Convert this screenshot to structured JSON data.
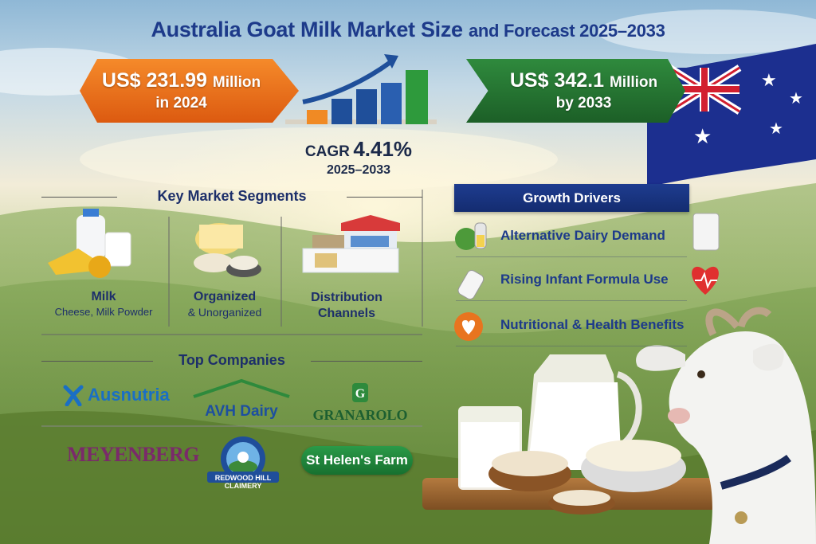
{
  "title": {
    "main": "Australia Goat Milk Market Size",
    "sub": "and Forecast 2025–2033"
  },
  "market_2024": {
    "value": "US$ 231.99",
    "unit": "Million",
    "period": "in 2024"
  },
  "market_2033": {
    "value": "US$ 342.1",
    "unit": "Million",
    "period": "by 2033"
  },
  "cagr": {
    "label": "CAGR",
    "value": "4.41%",
    "period": "2025–2033"
  },
  "segments": {
    "heading": "Key Market Segments",
    "items": [
      {
        "title": "Milk",
        "subtitle": "Cheese, Milk Powder"
      },
      {
        "title": "Organized",
        "subtitle": "& Unorganized"
      },
      {
        "title": "Distribution",
        "subtitle": "Channels"
      }
    ]
  },
  "drivers": {
    "heading": "Growth Drivers",
    "items": [
      "Alternative Dairy Demand",
      "Rising Infant Formula Use",
      "Nutritional & Health Benefits"
    ]
  },
  "companies": {
    "heading": "Top Companies",
    "items": [
      "Ausnutria",
      "AVH Dairy",
      "GRANAROLO",
      "MEYENBERG",
      "REDWOOD HILL CLAIMERY",
      "St Helen's Farm"
    ]
  },
  "colors": {
    "title_blue": "#1d3a8a",
    "banner_orange": "#e8701a",
    "banner_green": "#247a34",
    "drivers_blue": "#1a357f"
  }
}
